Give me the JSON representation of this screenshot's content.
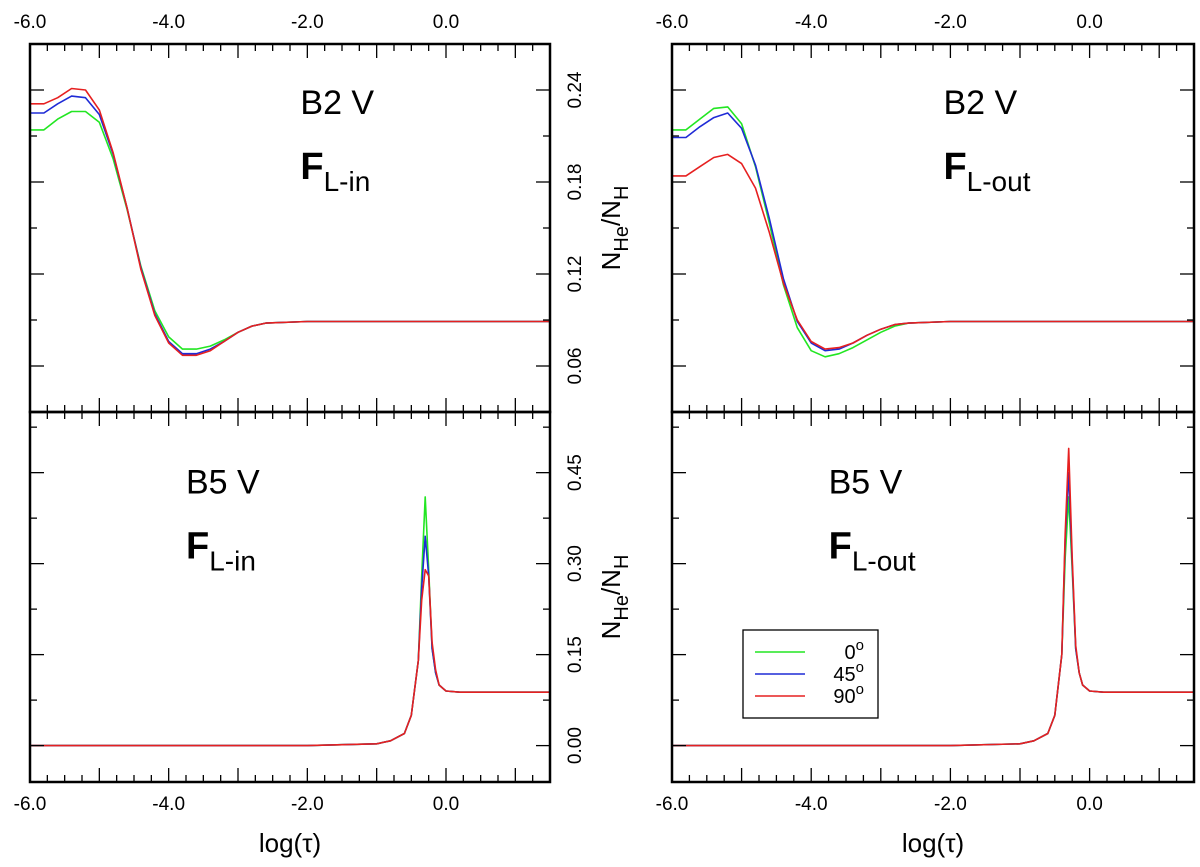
{
  "chart_data": {
    "type": "line",
    "title": "",
    "series_names": [
      "0°",
      "45°",
      "90°"
    ],
    "colors": {
      "0°": "#22e622",
      "45°": "#1f2bd6",
      "90°": "#e62020"
    },
    "xlim": [
      -6.0,
      1.5
    ],
    "x_ticks": [
      "-6.0",
      "-4.0",
      "-2.0",
      "0.0"
    ],
    "xlabel": "log(τ)",
    "ylabel": {
      "base": "N",
      "num_sub": "He",
      "sep": "/N",
      "den_sub": "H"
    },
    "legend": {
      "position": "lower-right of right-bottom panel",
      "items": [
        {
          "label": "0",
          "deg": "o",
          "series": "0°"
        },
        {
          "label": "45",
          "deg": "o",
          "series": "45°"
        },
        {
          "label": "90",
          "deg": "o",
          "series": "90°"
        }
      ]
    },
    "panels": [
      {
        "id": "b2v-in",
        "row": "top",
        "col": "left",
        "star": "B2 V",
        "flux_main": "F",
        "flux_sub": "L-in",
        "ylim": [
          0.03,
          0.27
        ],
        "y_ticks": [
          "0.06",
          "0.12",
          "0.18",
          "0.24"
        ],
        "x": [
          -6.0,
          -5.8,
          -5.6,
          -5.4,
          -5.2,
          -5.0,
          -4.8,
          -4.6,
          -4.4,
          -4.2,
          -4.0,
          -3.8,
          -3.6,
          -3.4,
          -3.2,
          -3.0,
          -2.8,
          -2.6,
          -2.0,
          -1.0,
          0.0,
          1.5
        ],
        "series": [
          {
            "name": "0°",
            "values": [
              0.214,
              0.214,
              0.221,
              0.226,
              0.226,
              0.219,
              0.195,
              0.162,
              0.125,
              0.096,
              0.079,
              0.071,
              0.071,
              0.073,
              0.077,
              0.082,
              0.086,
              0.088,
              0.089,
              0.089,
              0.089,
              0.089
            ]
          },
          {
            "name": "45°",
            "values": [
              0.225,
              0.225,
              0.231,
              0.236,
              0.235,
              0.224,
              0.198,
              0.163,
              0.124,
              0.094,
              0.076,
              0.068,
              0.068,
              0.071,
              0.076,
              0.082,
              0.086,
              0.088,
              0.089,
              0.089,
              0.089,
              0.089
            ]
          },
          {
            "name": "90°",
            "values": [
              0.231,
              0.231,
              0.235,
              0.241,
              0.24,
              0.227,
              0.199,
              0.163,
              0.123,
              0.093,
              0.075,
              0.067,
              0.067,
              0.07,
              0.076,
              0.082,
              0.086,
              0.088,
              0.089,
              0.089,
              0.089,
              0.089
            ]
          }
        ]
      },
      {
        "id": "b2v-out",
        "row": "top",
        "col": "right",
        "star": "B2 V",
        "flux_main": "F",
        "flux_sub": "L-out",
        "ylim": [
          0.03,
          0.27
        ],
        "y_ticks": [
          "0.06",
          "0.12",
          "0.18",
          "0.24"
        ],
        "x": [
          -6.0,
          -5.8,
          -5.6,
          -5.4,
          -5.2,
          -5.0,
          -4.8,
          -4.6,
          -4.4,
          -4.2,
          -4.0,
          -3.8,
          -3.6,
          -3.4,
          -3.2,
          -3.0,
          -2.8,
          -2.6,
          -2.0,
          -1.0,
          0.0,
          1.5
        ],
        "series": [
          {
            "name": "0°",
            "values": [
              0.214,
              0.214,
              0.221,
              0.228,
              0.229,
              0.218,
              0.19,
              0.153,
              0.113,
              0.085,
              0.07,
              0.066,
              0.068,
              0.072,
              0.077,
              0.082,
              0.086,
              0.088,
              0.089,
              0.089,
              0.089,
              0.089
            ]
          },
          {
            "name": "45°",
            "values": [
              0.209,
              0.209,
              0.216,
              0.222,
              0.225,
              0.215,
              0.191,
              0.156,
              0.117,
              0.089,
              0.075,
              0.07,
              0.071,
              0.075,
              0.08,
              0.084,
              0.087,
              0.088,
              0.089,
              0.089,
              0.089,
              0.089
            ]
          },
          {
            "name": "90°",
            "values": [
              0.184,
              0.184,
              0.19,
              0.196,
              0.198,
              0.192,
              0.176,
              0.147,
              0.114,
              0.09,
              0.076,
              0.071,
              0.072,
              0.075,
              0.08,
              0.084,
              0.087,
              0.088,
              0.089,
              0.089,
              0.089,
              0.089
            ]
          }
        ]
      },
      {
        "id": "b5v-in",
        "row": "bottom",
        "col": "left",
        "star": "B5 V",
        "flux_main": "F",
        "flux_sub": "L-in",
        "ylim": [
          -0.06,
          0.55
        ],
        "y_ticks": [
          "0.00",
          "0.15",
          "0.30",
          "0.45"
        ],
        "x": [
          -6.0,
          -2.0,
          -1.0,
          -0.8,
          -0.6,
          -0.5,
          -0.4,
          -0.35,
          -0.3,
          -0.25,
          -0.2,
          -0.15,
          -0.1,
          -0.05,
          0.0,
          0.2,
          0.5,
          1.0,
          1.5
        ],
        "series": [
          {
            "name": "0°",
            "values": [
              0.0,
              0.0,
              0.003,
              0.008,
              0.02,
              0.05,
              0.14,
              0.28,
              0.41,
              0.29,
              0.16,
              0.12,
              0.1,
              0.095,
              0.09,
              0.088,
              0.088,
              0.088,
              0.088
            ]
          },
          {
            "name": "45°",
            "values": [
              0.0,
              0.0,
              0.003,
              0.008,
              0.02,
              0.05,
              0.14,
              0.26,
              0.345,
              0.28,
              0.16,
              0.12,
              0.1,
              0.095,
              0.09,
              0.088,
              0.088,
              0.088,
              0.088
            ]
          },
          {
            "name": "90°",
            "values": [
              0.0,
              0.0,
              0.003,
              0.008,
              0.02,
              0.05,
              0.14,
              0.24,
              0.29,
              0.28,
              0.17,
              0.125,
              0.1,
              0.095,
              0.09,
              0.088,
              0.088,
              0.088,
              0.088
            ]
          }
        ]
      },
      {
        "id": "b5v-out",
        "row": "bottom",
        "col": "right",
        "star": "B5 V",
        "flux_main": "F",
        "flux_sub": "L-out",
        "ylim": [
          -0.06,
          0.55
        ],
        "y_ticks": [
          "0.00",
          "0.15",
          "0.30",
          "0.45"
        ],
        "x": [
          -6.0,
          -2.0,
          -1.0,
          -0.8,
          -0.6,
          -0.5,
          -0.4,
          -0.35,
          -0.3,
          -0.25,
          -0.2,
          -0.15,
          -0.1,
          -0.05,
          0.0,
          0.2,
          0.5,
          1.0,
          1.5
        ],
        "series": [
          {
            "name": "0°",
            "values": [
              0.0,
              0.0,
              0.003,
              0.008,
              0.02,
              0.05,
              0.15,
              0.31,
              0.41,
              0.29,
              0.16,
              0.12,
              0.1,
              0.095,
              0.09,
              0.088,
              0.088,
              0.088,
              0.088
            ]
          },
          {
            "name": "45°",
            "values": [
              0.0,
              0.0,
              0.003,
              0.008,
              0.02,
              0.05,
              0.15,
              0.34,
              0.45,
              0.3,
              0.16,
              0.12,
              0.1,
              0.095,
              0.09,
              0.088,
              0.088,
              0.088,
              0.088
            ]
          },
          {
            "name": "90°",
            "values": [
              0.0,
              0.0,
              0.003,
              0.008,
              0.02,
              0.05,
              0.15,
              0.35,
              0.49,
              0.31,
              0.165,
              0.12,
              0.1,
              0.095,
              0.09,
              0.088,
              0.088,
              0.088,
              0.088
            ]
          }
        ]
      }
    ]
  }
}
